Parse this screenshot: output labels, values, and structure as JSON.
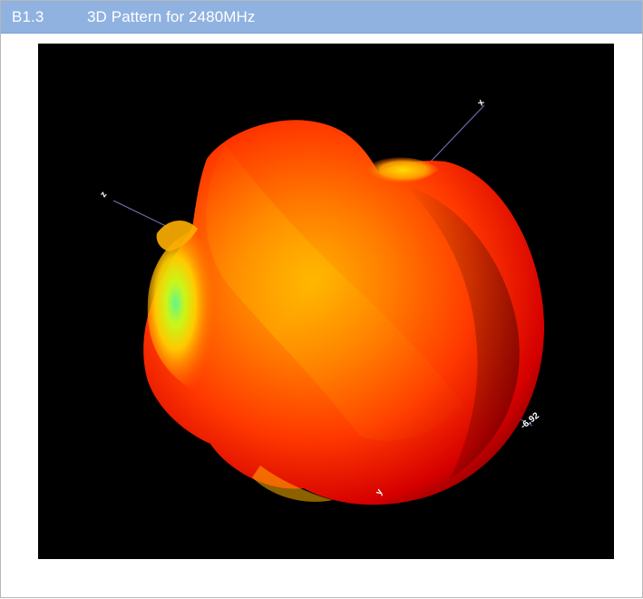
{
  "section": {
    "number": "B1.3",
    "title": "3D Pattern for 2480MHz"
  },
  "plot": {
    "background": "#000000",
    "lobe_colors": [
      "#ff1a00",
      "#ff6a00",
      "#ffc400",
      "#53d788"
    ],
    "axis_labels": {
      "x": "z",
      "y": "y",
      "z": "x"
    },
    "value_label": "-6.92"
  }
}
